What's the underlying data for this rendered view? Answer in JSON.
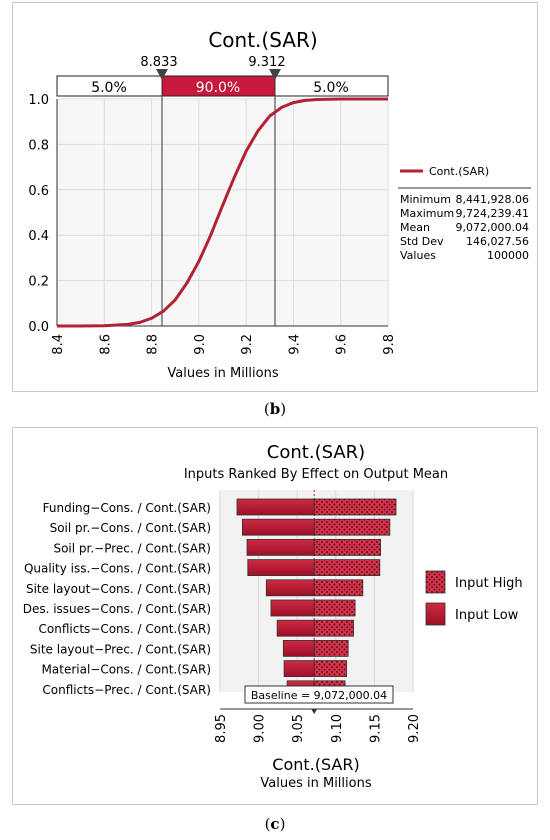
{
  "captions": {
    "b_open": "(",
    "b_letter": "b",
    "b_close": ")",
    "c_open": "(",
    "c_letter": "c",
    "c_close": ")"
  },
  "chart_data": [
    {
      "type": "line",
      "title": "Cont.(SAR)",
      "xlabel": "Values in Millions",
      "ylabel": "",
      "xlim": [
        8.4,
        9.8
      ],
      "ylim": [
        0.0,
        1.0
      ],
      "x_ticks": [
        "8.4",
        "8.6",
        "8.8",
        "9.0",
        "9.2",
        "9.4",
        "9.6",
        "9.8"
      ],
      "y_ticks": [
        "0.0",
        "0.2",
        "0.4",
        "0.6",
        "0.8",
        "1.0"
      ],
      "grid": true,
      "series": [
        {
          "name": "Cont.(SAR)",
          "color": "#b22234",
          "x": [
            8.44,
            8.5,
            8.6,
            8.7,
            8.75,
            8.8,
            8.85,
            8.9,
            8.95,
            9.0,
            9.05,
            9.1,
            9.15,
            9.2,
            9.25,
            9.3,
            9.35,
            9.4,
            9.45,
            9.5,
            9.6,
            9.72
          ],
          "y": [
            0.0,
            0.0,
            0.001,
            0.007,
            0.016,
            0.034,
            0.065,
            0.115,
            0.19,
            0.285,
            0.4,
            0.53,
            0.655,
            0.77,
            0.86,
            0.925,
            0.963,
            0.984,
            0.994,
            0.998,
            1.0,
            1.0
          ]
        }
      ],
      "delimiters": {
        "left_value": "8.833",
        "right_value": "9.312",
        "left_x": 8.833,
        "right_x": 9.312
      },
      "band_labels": {
        "left": "5.0%",
        "middle": "90.0%",
        "right": "5.0%"
      },
      "legend": {
        "position": "right",
        "label": "Cont.(SAR)"
      },
      "stats": [
        {
          "label": "Minimum",
          "value": "8,441,928.06"
        },
        {
          "label": "Maximum",
          "value": "9,724,239.41"
        },
        {
          "label": "Mean",
          "value": "9,072,000.04"
        },
        {
          "label": "Std Dev",
          "value": "146,027.56"
        },
        {
          "label": "Values",
          "value": "100000"
        }
      ],
      "colors": {
        "accent": "#c8193c",
        "line": "#b22234"
      }
    },
    {
      "type": "bar",
      "orientation": "horizontal",
      "title": "Cont.(SAR)",
      "subtitle": "Inputs Ranked By Effect on Output Mean",
      "xlabel": "Cont.(SAR)",
      "xlabel2": "Values in Millions",
      "xlim": [
        8.95,
        9.2
      ],
      "x_ticks": [
        "8.95",
        "9.00",
        "9.05",
        "9.10",
        "9.15",
        "9.20"
      ],
      "baseline": 9.072,
      "baseline_label": "Baseline = 9,072,000.04",
      "categories": [
        "Funding−Cons. / Cont.(SAR)",
        "Soil pr.−Cons. / Cont.(SAR)",
        "Soil pr.−Prec. / Cont.(SAR)",
        "Quality iss.−Cons. / Cont.(SAR)",
        "Site layout−Cons. / Cont.(SAR)",
        "Des. issues−Cons. / Cont.(SAR)",
        "Conflicts−Cons. / Cont.(SAR)",
        "Site layout−Prec. / Cont.(SAR)",
        "Material−Cons. / Cont.(SAR)",
        "Conflicts−Prec. / Cont.(SAR)"
      ],
      "series": [
        {
          "name": "Input High",
          "color": "#d4314b",
          "values": [
            9.178,
            9.17,
            9.158,
            9.157,
            9.135,
            9.125,
            9.123,
            9.116,
            9.114,
            9.112
          ]
        },
        {
          "name": "Input Low",
          "color": "#b5152f",
          "values": [
            8.972,
            8.979,
            8.985,
            8.986,
            9.01,
            9.016,
            9.024,
            9.032,
            9.033,
            9.037
          ]
        }
      ],
      "legend": {
        "position": "right"
      }
    }
  ]
}
